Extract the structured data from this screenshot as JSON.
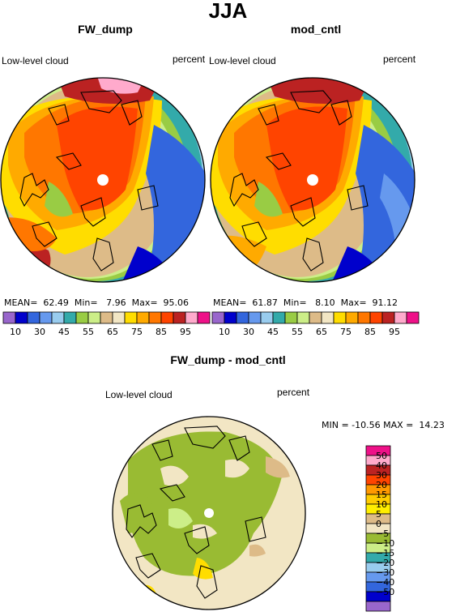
{
  "figure": {
    "title": "JJA",
    "panels": [
      {
        "heading": "FW_dump",
        "left_label": "Low-level cloud",
        "right_label": "percent",
        "stats": "MEAN=  62.49  Min=   7.96  Max=  95.06"
      },
      {
        "heading": "mod_cntl",
        "left_label": "Low-level cloud",
        "right_label": "percent",
        "stats": "MEAN=  61.87  Min=   8.10  Max=  91.12"
      }
    ],
    "diff_panel": {
      "heading": "FW_dump - mod_cntl",
      "left_label": "Low-level cloud",
      "right_label": "percent",
      "stats": "MIN = -10.56 MAX =  14.23"
    },
    "colorbar_top": {
      "labels": [
        "10",
        "30",
        "45",
        "55",
        "65",
        "75",
        "85",
        "95"
      ],
      "colors": [
        "#9966cc",
        "#0000cc",
        "#3366dd",
        "#6699ee",
        "#99ccee",
        "#33aaaa",
        "#99cc44",
        "#ccee88",
        "#ddbb88",
        "#f2e6c4",
        "#ffdd00",
        "#ffaa00",
        "#ff7700",
        "#ff4400",
        "#bb2222",
        "#ffaacc",
        "#ee1188"
      ]
    },
    "colorbar_diff": {
      "labels": [
        "50",
        "40",
        "30",
        "20",
        "15",
        "10",
        "5",
        "0",
        "−5",
        "−10",
        "−15",
        "−20",
        "−30",
        "−40",
        "−50"
      ],
      "colors": [
        "#ee1188",
        "#ffaacc",
        "#bb2222",
        "#ff4400",
        "#ff9900",
        "#ffcc00",
        "#ffee00",
        "#ddbb88",
        "#f2e6c4",
        "#99bb33",
        "#ccee88",
        "#33aaaa",
        "#99ccee",
        "#6699ee",
        "#3366dd",
        "#0000cc",
        "#9966cc"
      ]
    }
  }
}
